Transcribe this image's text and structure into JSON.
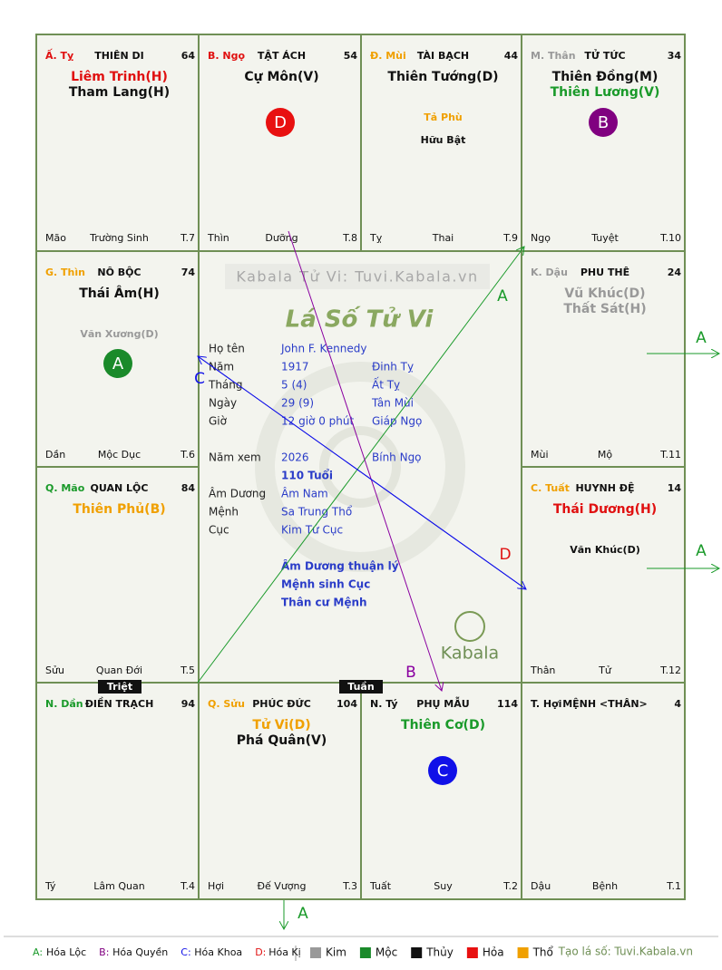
{
  "watermark": "Kabala Tử Vi: Tuvi.Kabala.vn",
  "chart_title": "Lá Số Tử Vi",
  "logo": "Kabala",
  "cells": [
    {
      "label": "Ấ. Tỵ",
      "label_color": "#e01010",
      "name": "THIÊN DI",
      "number": "64",
      "stars": [
        {
          "text": "Liêm Trinh(H)",
          "color": "#e01010"
        },
        {
          "text": "Tham Lang(H)",
          "color": "#111"
        }
      ],
      "minor": [],
      "bottom": [
        "Mão",
        "Trường Sinh",
        "T.7"
      ]
    },
    {
      "label": "B. Ngọ",
      "label_color": "#e01010",
      "name": "TẬT ÁCH",
      "number": "54",
      "stars": [
        {
          "text": "Cự Môn(V)",
          "color": "#111"
        }
      ],
      "minor": [],
      "marker": {
        "text": "D",
        "color": "#e81010"
      },
      "bottom": [
        "Thìn",
        "Dưỡng",
        "T.8"
      ]
    },
    {
      "label": "Đ. Mùi",
      "label_color": "#f0a000",
      "name": "TÀI BẠCH",
      "number": "44",
      "stars": [
        {
          "text": "Thiên Tướng(D)",
          "color": "#111"
        }
      ],
      "minor": [
        {
          "text": "Tả Phù",
          "color": "#f0a000"
        },
        {
          "text": "Hữu Bật",
          "color": "#111"
        }
      ],
      "bottom": [
        "Tỵ",
        "Thai",
        "T.9"
      ]
    },
    {
      "label": "M. Thân",
      "label_color": "#999",
      "name": "TỬ TỨC",
      "number": "34",
      "stars": [
        {
          "text": "Thiên Đồng(M)",
          "color": "#111"
        },
        {
          "text": "Thiên Lương(V)",
          "color": "#1a9a2a"
        }
      ],
      "minor": [],
      "marker": {
        "text": "B",
        "color": "#800080"
      },
      "bottom": [
        "Ngọ",
        "Tuyệt",
        "T.10"
      ]
    },
    {
      "label": "G. Thìn",
      "label_color": "#f0a000",
      "name": "NÔ BỘC",
      "number": "74",
      "stars": [
        {
          "text": "Thái Âm(H)",
          "color": "#111"
        }
      ],
      "minor": [
        {
          "text": "Văn Xương(D)",
          "color": "#999"
        }
      ],
      "marker": {
        "text": "A",
        "color": "#1a8a2a"
      },
      "bottom": [
        "Dần",
        "Mộc Dục",
        "T.6"
      ]
    },
    {
      "label": "K. Dậu",
      "label_color": "#999",
      "name": "PHU THÊ",
      "number": "24",
      "stars": [
        {
          "text": "Vũ Khúc(D)",
          "color": "#999"
        },
        {
          "text": "Thất Sát(H)",
          "color": "#999"
        }
      ],
      "minor": [],
      "bottom": [
        "Mùi",
        "Mộ",
        "T.11"
      ]
    },
    {
      "label": "Q. Mão",
      "label_color": "#1a9a2a",
      "name": "QUAN LỘC",
      "number": "84",
      "stars": [
        {
          "text": "Thiên Phủ(B)",
          "color": "#f0a000"
        }
      ],
      "minor": [],
      "bottom": [
        "Sửu",
        "Quan Đới",
        "T.5"
      ]
    },
    {
      "label": "C. Tuất",
      "label_color": "#f0a000",
      "name": "HUYNH ĐỆ",
      "number": "14",
      "stars": [
        {
          "text": "Thái Dương(H)",
          "color": "#e01010"
        }
      ],
      "minor": [
        {
          "text": "Văn Khúc(D)",
          "color": "#111"
        }
      ],
      "bottom": [
        "Thân",
        "Tử",
        "T.12"
      ]
    },
    {
      "label": "N. Dần",
      "label_color": "#1a9a2a",
      "name": "ĐIỀN TRẠCH",
      "number": "94",
      "stars": [],
      "minor": [],
      "bottom": [
        "Tý",
        "Lâm Quan",
        "T.4"
      ]
    },
    {
      "label": "Q. Sửu",
      "label_color": "#f0a000",
      "name": "PHÚC ĐỨC",
      "number": "104",
      "stars": [
        {
          "text": "Tử Vi(D)",
          "color": "#f0a000"
        },
        {
          "text": "Phá Quân(V)",
          "color": "#111"
        }
      ],
      "minor": [],
      "bottom": [
        "Hợi",
        "Đế Vượng",
        "T.3"
      ]
    },
    {
      "label": "N. Tý",
      "label_color": "#111",
      "name": "PHỤ MẪU",
      "number": "114",
      "stars": [
        {
          "text": "Thiên Cơ(D)",
          "color": "#1a9a2a"
        }
      ],
      "minor": [],
      "marker": {
        "text": "C",
        "color": "#1010e8"
      },
      "bottom": [
        "Tuất",
        "Suy",
        "T.2"
      ]
    },
    {
      "label": "T. Hợi",
      "label_color": "#111",
      "name": "MỆNH <THÂN>",
      "number": "4",
      "stars": [],
      "minor": [],
      "bottom": [
        "Dậu",
        "Bệnh",
        "T.1"
      ]
    }
  ],
  "info": [
    {
      "label": "Họ tên",
      "value": "John F. Kennedy"
    },
    {
      "label": "Năm",
      "value": "1917",
      "extra": "Đinh Tỵ"
    },
    {
      "label": "Tháng",
      "value": "5  (4)",
      "extra": "Ất Tỵ"
    },
    {
      "label": "Ngày",
      "value": "29  (9)",
      "extra": "Tân Mùi"
    },
    {
      "label": "Giờ",
      "value": "12 giờ 0 phút",
      "extra": "Giáp Ngọ"
    },
    {
      "label": "Năm xem",
      "value": "2026",
      "extra": "Bính Ngọ"
    },
    {
      "value": "110 Tuổi"
    },
    {
      "label": "Âm Dương",
      "value": "Âm Nam"
    },
    {
      "label": "Mệnh",
      "value": "Sa Trung Thổ"
    },
    {
      "label": "Cục",
      "value": "Kim Tứ Cục"
    }
  ],
  "notes": [
    "Âm Dương thuận lý",
    "Mệnh sinh Cục",
    "Thân cư Mệnh"
  ],
  "tags": [
    "Triệt",
    "Tuần"
  ],
  "arrow_labels": [
    "A",
    "B",
    "C",
    "D",
    "A",
    "A",
    "A"
  ],
  "legend": [
    {
      "key": "A:",
      "text": "Hóa Lộc",
      "color": "#1a9a2a"
    },
    {
      "key": "B:",
      "text": "Hóa Quyền",
      "color": "#800080"
    },
    {
      "key": "C:",
      "text": "Hóa Khoa",
      "color": "#1010e8"
    },
    {
      "key": "D:",
      "text": "Hóa Kị",
      "color": "#e01010"
    }
  ],
  "elements": [
    {
      "text": "Kim",
      "color": "#999"
    },
    {
      "text": "Mộc",
      "color": "#1a8a2a"
    },
    {
      "text": "Thủy",
      "color": "#111"
    },
    {
      "text": "Hỏa",
      "color": "#e81010"
    },
    {
      "text": "Thổ",
      "color": "#f0a000"
    }
  ],
  "credit": "Tạo lá số: Tuvi.Kabala.vn"
}
